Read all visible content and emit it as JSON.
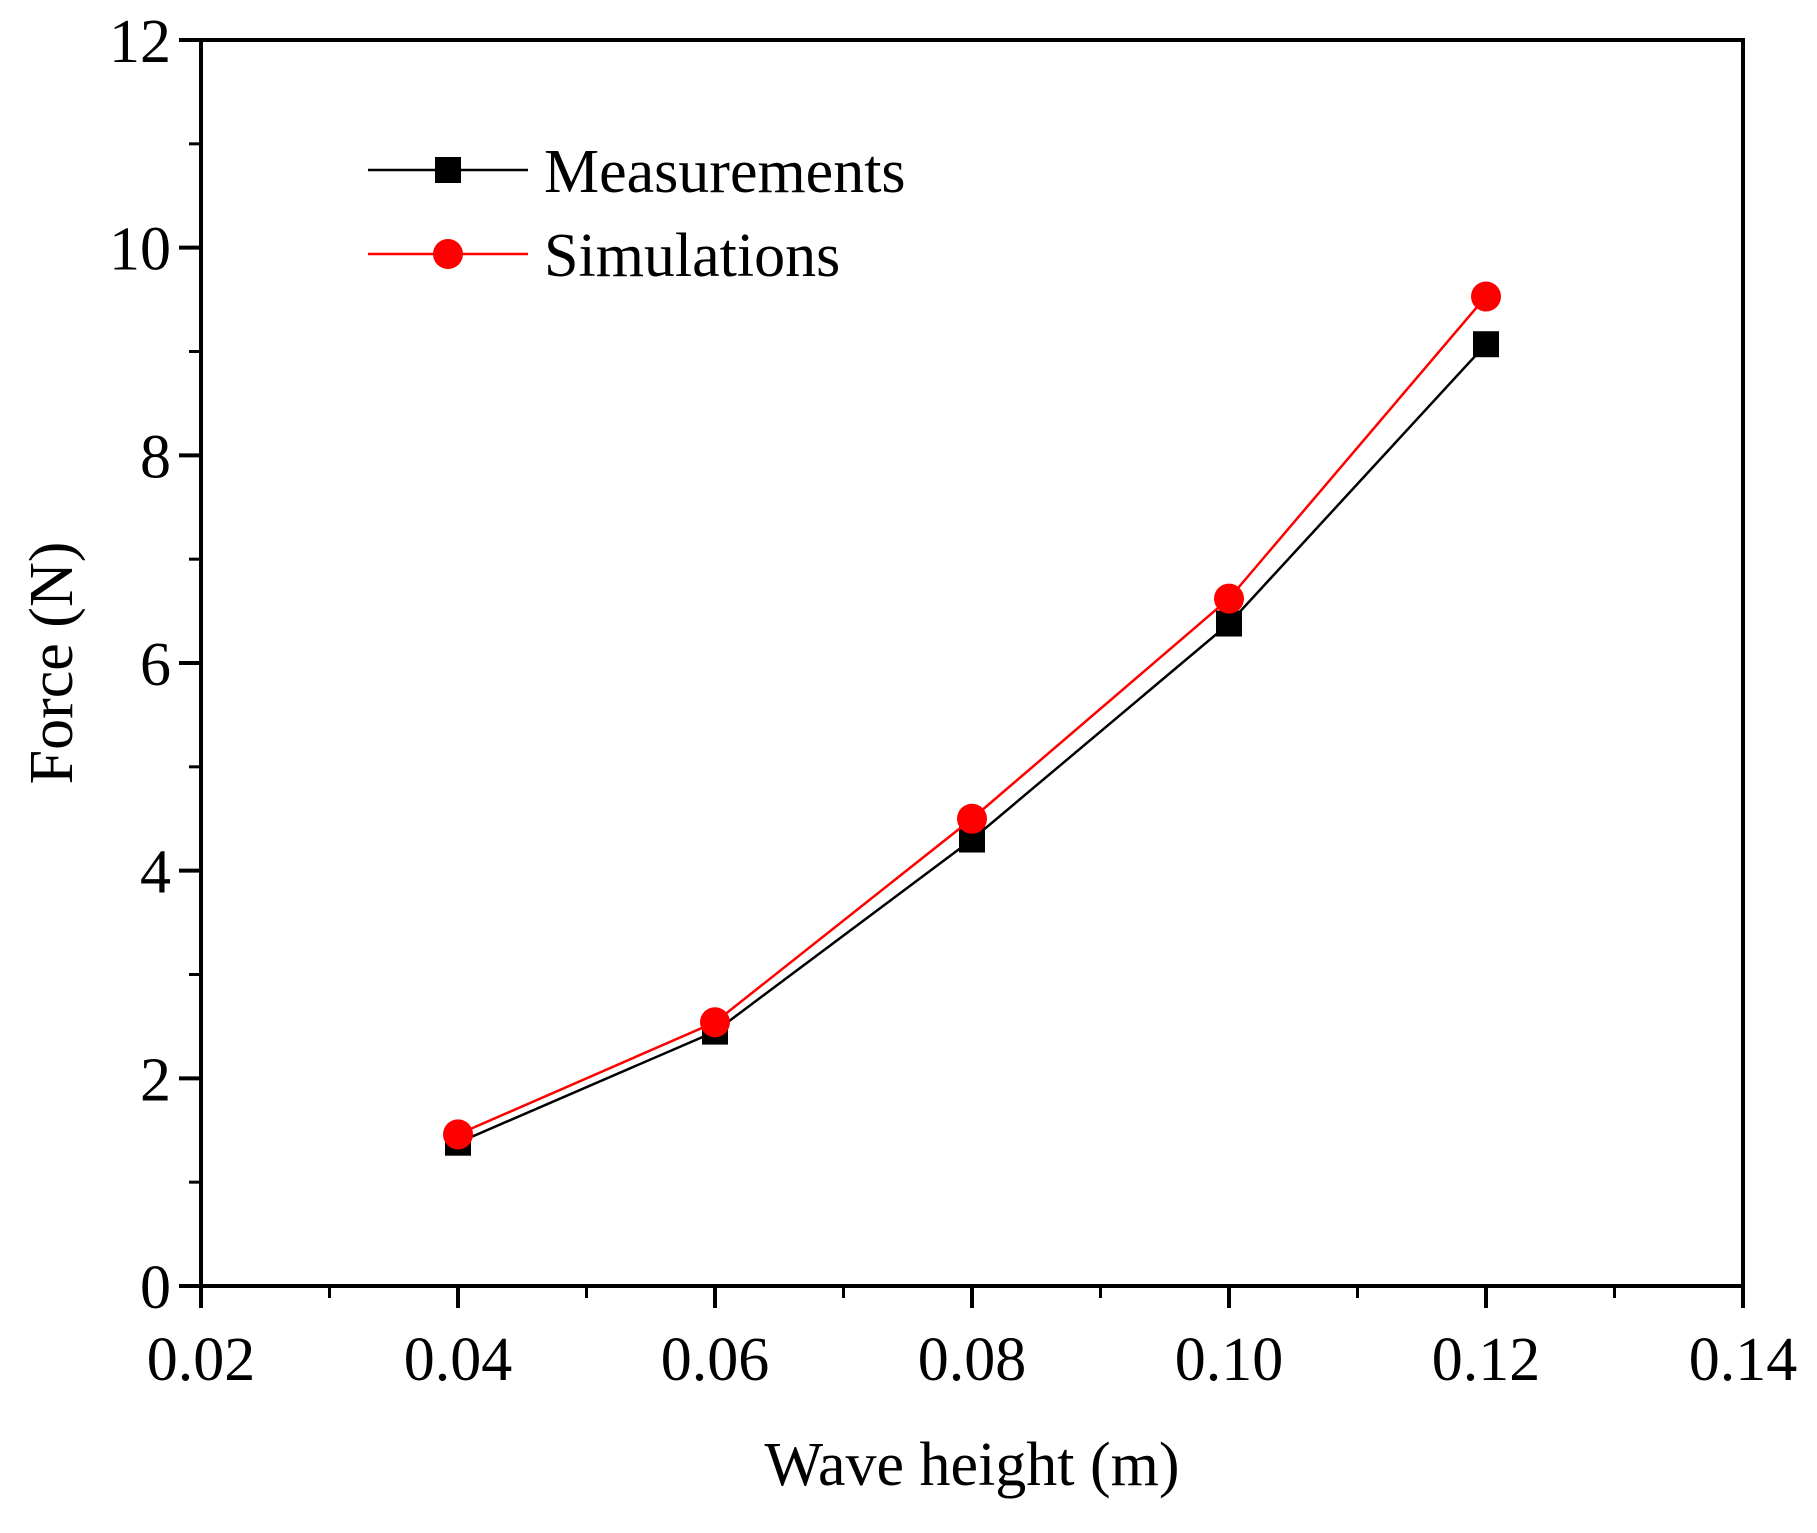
{
  "chart_data": {
    "type": "line",
    "xlabel": "Wave height (m)",
    "ylabel": "Force (N)",
    "xlim": [
      0.02,
      0.14
    ],
    "ylim": [
      0,
      12
    ],
    "x_ticks": [
      "0.02",
      "0.04",
      "0.06",
      "0.08",
      "0.10",
      "0.12",
      "0.14"
    ],
    "y_ticks": [
      "0",
      "2",
      "4",
      "6",
      "8",
      "10",
      "12"
    ],
    "grid": false,
    "legend_position": "top-left",
    "series": [
      {
        "name": "Measurements",
        "color": "#000000",
        "marker": "square",
        "x": [
          0.04,
          0.06,
          0.08,
          0.1,
          0.12
        ],
        "y": [
          1.38,
          2.45,
          4.3,
          6.38,
          9.07
        ]
      },
      {
        "name": "Simulations",
        "color": "#ff0000",
        "marker": "circle",
        "x": [
          0.04,
          0.06,
          0.08,
          0.1,
          0.12
        ],
        "y": [
          1.46,
          2.54,
          4.5,
          6.62,
          9.53
        ]
      }
    ]
  }
}
